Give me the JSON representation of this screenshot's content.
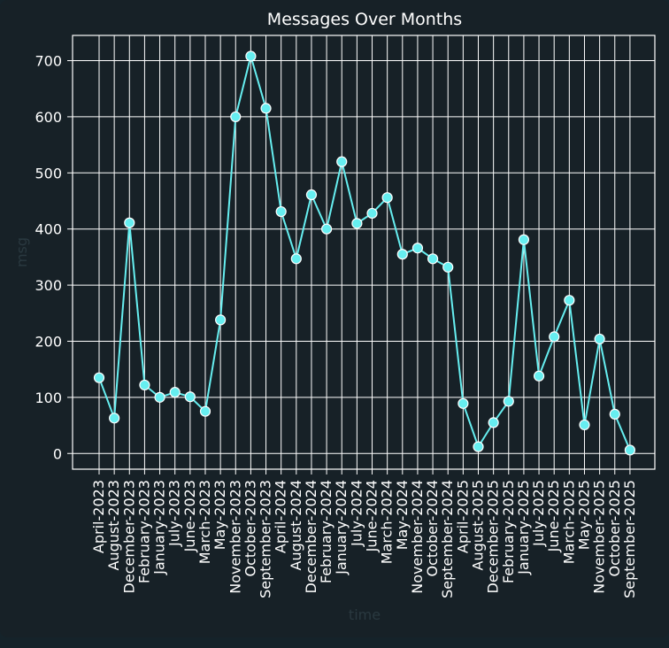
{
  "chart_data": {
    "type": "line",
    "title": "Messages Over Months",
    "xlabel": "time",
    "ylabel": "msg",
    "x": [
      "April-2023",
      "August-2023",
      "December-2023",
      "February-2023",
      "January-2023",
      "July-2023",
      "June-2023",
      "March-2023",
      "May-2023",
      "November-2023",
      "October-2023",
      "September-2023",
      "April-2024",
      "August-2024",
      "December-2024",
      "February-2024",
      "January-2024",
      "July-2024",
      "June-2024",
      "March-2024",
      "May-2024",
      "November-2024",
      "October-2024",
      "September-2024",
      "April-2025",
      "August-2025",
      "December-2025",
      "February-2025",
      "January-2025",
      "July-2025",
      "June-2025",
      "March-2025",
      "May-2025",
      "November-2025",
      "October-2025",
      "September-2025"
    ],
    "series": [
      {
        "values": [
          135,
          63,
          411,
          122,
          100,
          109,
          101,
          75,
          238,
          600,
          708,
          615,
          431,
          347,
          461,
          400,
          520,
          410,
          428,
          456,
          355,
          366,
          347,
          332,
          89,
          12,
          55,
          93,
          381,
          138,
          208,
          273,
          51,
          204,
          70,
          6
        ]
      }
    ],
    "yticks": [
      0,
      100,
      200,
      300,
      400,
      500,
      600,
      700
    ],
    "ylim": [
      -28,
      745
    ],
    "grid": true,
    "colors": {
      "line": "#66eef0",
      "marker_edge": "#ffffff",
      "grid": "#ffffff",
      "background": "#172127"
    }
  }
}
